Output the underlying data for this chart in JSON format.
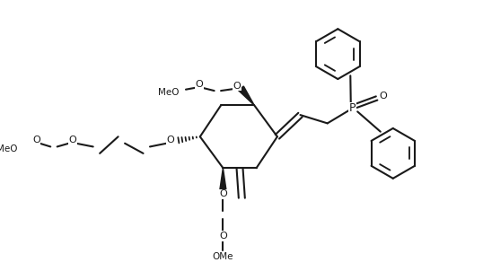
{
  "figw": 5.38,
  "figh": 3.12,
  "dpi": 100,
  "bg": "#ffffff",
  "lc": "#1a1a1a",
  "lw": 1.5,
  "fs": 8.0,
  "xlim": [
    0,
    10.76
  ],
  "ylim": [
    0,
    6.24
  ]
}
